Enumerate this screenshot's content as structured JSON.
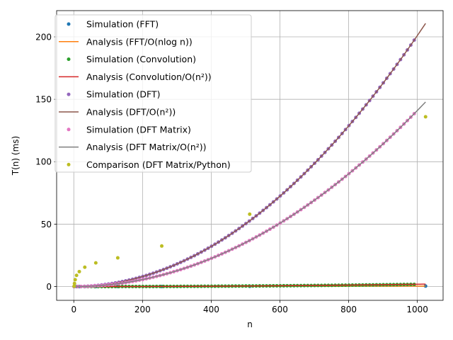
{
  "chart_data": {
    "type": "scatter",
    "xlabel": "n",
    "ylabel": "T(n) (ms)",
    "xlim": [
      -50,
      1075
    ],
    "ylim": [
      -11,
      221
    ],
    "xticks": [
      0,
      200,
      400,
      600,
      800,
      1000
    ],
    "yticks": [
      0,
      50,
      100,
      150,
      200
    ],
    "grid": true,
    "legend_position": "upper-left",
    "series": [
      {
        "name": "Simulation (FFT)",
        "kind": "points",
        "color": "#1f77b4",
        "x": [
          1,
          8,
          16,
          32,
          64,
          128,
          256,
          512,
          1024
        ],
        "y": [
          0.0,
          0.0,
          0.0,
          0.01,
          0.02,
          0.04,
          0.09,
          0.2,
          0.42
        ]
      },
      {
        "name": "Analysis (FFT/O(nlog n))",
        "kind": "line",
        "color": "#ff7f0e",
        "fn": "nlogn",
        "coef": 4.07e-05,
        "x_range": [
          2,
          1024
        ]
      },
      {
        "name": "Simulation (Convolution)",
        "kind": "points",
        "color": "#2ca02c",
        "fn": "quad",
        "coef": 1.8e-06,
        "x_range": [
          1,
          1000
        ],
        "step": 10
      },
      {
        "name": "Analysis (Convolution/O(n²))",
        "kind": "line",
        "color": "#d62728",
        "fn": "quad",
        "coef": 1.9e-06,
        "x_range": [
          1,
          1024
        ]
      },
      {
        "name": "Simulation (DFT)",
        "kind": "points",
        "color": "#9467bd",
        "fn": "quad",
        "coef": 0.000201,
        "x_range": [
          1,
          1000
        ],
        "step": 10
      },
      {
        "name": "Analysis (DFT/O(n²))",
        "kind": "line",
        "color": "#8c564b",
        "fn": "quad",
        "coef": 0.000201,
        "x_range": [
          1,
          1024
        ]
      },
      {
        "name": "Simulation (DFT Matrix)",
        "kind": "points",
        "color": "#e377c2",
        "fn": "quad",
        "coef": 0.000141,
        "x_range": [
          1,
          1000
        ],
        "step": 10
      },
      {
        "name": "Analysis (DFT Matrix/O(n²))",
        "kind": "line",
        "color": "#7f7f7f",
        "fn": "quad",
        "coef": 0.000141,
        "x_range": [
          1,
          1024
        ]
      },
      {
        "name": "Comparison (DFT Matrix/Python)",
        "kind": "points",
        "color": "#bcbd22",
        "x": [
          1,
          2,
          4,
          8,
          16,
          32,
          64,
          128,
          256,
          512,
          1024
        ],
        "y": [
          0.3,
          2.5,
          5.5,
          9,
          12,
          15.5,
          19,
          23,
          32.5,
          58,
          136
        ]
      }
    ]
  }
}
